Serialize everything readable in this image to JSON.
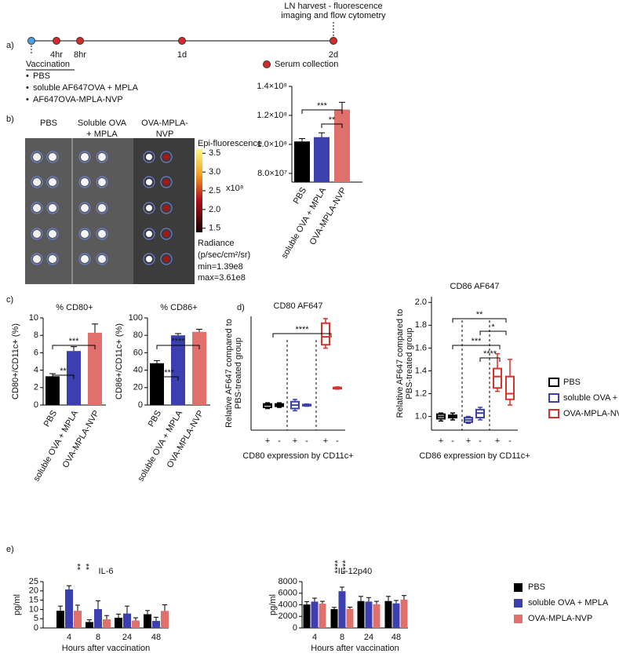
{
  "panel_labels": [
    "a)",
    "b)",
    "c)",
    "d)",
    "e)"
  ],
  "timeline": {
    "title_lines": [
      "LN harvest - fluorescence",
      "imaging and flow cytometry"
    ],
    "points": [
      "4hr",
      "8hr",
      "1d",
      "2d"
    ],
    "legend": "Serum collection",
    "group_title": "Vaccination",
    "groups": [
      "PBS",
      "soluble AF647OVA + MPLA",
      "AF647OVA-MPLA-NVP"
    ]
  },
  "image": {
    "columns": [
      [
        "PBS"
      ],
      [
        "Soluble OVA",
        "+ MPLA"
      ],
      [
        "OVA-MPLA-",
        "NVP"
      ]
    ],
    "colorbar": {
      "title": "Epi-fluorescence",
      "range": [
        1.39,
        3.61
      ],
      "ticks": [
        3.5,
        {
          "value": 3,
          "label": "3.0"
        },
        2.5,
        {
          "value": 2,
          "label": "2.0"
        },
        1.5
      ],
      "exponent": "x10⁸",
      "unit_lines": [
        "Radiance",
        "(p/sec/cm²/sr)"
      ],
      "min": "min=1.39e8",
      "max": "max=3.61e8"
    }
  },
  "chart_data": [
    {
      "type": "bar",
      "categories": [
        "PBS",
        "soluble OVA + MPLA",
        "OVA-MPLA-NVP"
      ],
      "values": [
        102000000,
        105000000,
        124000000
      ],
      "errors": [
        2000000,
        3000000,
        5000000
      ],
      "colors": [
        "#000000",
        "#3b3fb0",
        "#e0706c"
      ],
      "ylim": [
        74000000,
        140000000
      ],
      "yticks": [
        {
          "value": 80000000,
          "label": "8.0×10⁷"
        },
        {
          "value": 100000000,
          "label": "1.0×10⁸"
        },
        {
          "value": 120000000,
          "label": "1.2×10⁸"
        },
        {
          "value": 140000000,
          "label": "1.4×10⁸"
        }
      ],
      "annotations": [
        "***",
        "**"
      ]
    },
    {
      "type": "bar",
      "title": "% CD80+",
      "ylabel": "CD80+/CD11c+ (%)",
      "categories": [
        "PBS",
        "soluble OVA + MPLA",
        "OVA-MPLA-NVP"
      ],
      "values": [
        3.3,
        6.2,
        8.3
      ],
      "errors": [
        0.3,
        0.5,
        1.0
      ],
      "colors": [
        "#000000",
        "#3b3fb0",
        "#e0706c"
      ],
      "ylim": [
        0,
        10
      ],
      "yticks": [
        0,
        2,
        4,
        6,
        8,
        10
      ],
      "annotations": [
        "***",
        "**"
      ]
    },
    {
      "type": "bar",
      "title": "% CD86+",
      "ylabel": "CD86+/CD11c+ (%)",
      "categories": [
        "PBS",
        "soluble OVA + MPLA",
        "OVA-MPLA-NVP"
      ],
      "values": [
        48,
        80,
        84
      ],
      "errors": [
        3,
        2,
        3
      ],
      "colors": [
        "#000000",
        "#3b3fb0",
        "#e0706c"
      ],
      "ylim": [
        0,
        100
      ],
      "yticks": [
        0,
        20,
        40,
        60,
        80,
        100
      ],
      "annotations": [
        "****",
        "****"
      ]
    },
    {
      "type": "box",
      "title": "CD80 AF647",
      "ylabel_lines": [
        "Relative AF647 compared to",
        "PBS-treated group"
      ],
      "xlabel": "CD80 expression by CD11c+",
      "categories": [
        "+",
        "-",
        "+",
        "-",
        "+",
        "-"
      ],
      "ylim": [
        0.78,
        1.78
      ],
      "series": [
        {
          "color": "#000000",
          "boxes": [
            {
              "min": 0.97,
              "q1": 0.98,
              "median": 1.0,
              "q3": 1.01,
              "max": 1.02
            },
            {
              "min": 0.98,
              "q1": 0.99,
              "median": 1.0,
              "q3": 1.01,
              "max": 1.02
            }
          ]
        },
        {
          "color": "#3b3fb0",
          "boxes": [
            {
              "min": 0.95,
              "q1": 0.97,
              "median": 1.0,
              "q3": 1.03,
              "max": 1.05
            },
            {
              "min": 0.99,
              "q1": 0.995,
              "median": 1.0,
              "q3": 1.005,
              "max": 1.01
            }
          ]
        },
        {
          "color": "#d9312b",
          "boxes": [
            {
              "min": 1.5,
              "q1": 1.53,
              "median": 1.6,
              "q3": 1.72,
              "max": 1.76
            },
            {
              "min": 1.14,
              "q1": 1.145,
              "median": 1.15,
              "q3": 1.155,
              "max": 1.16
            }
          ]
        }
      ],
      "annotations": [
        "****"
      ]
    },
    {
      "type": "box",
      "title": "CD86 AF647",
      "ylabel_lines": [
        "Relative AF647 compared to",
        "PBS-treated group"
      ],
      "xlabel": "CD86 expression by CD11c+",
      "categories": [
        "+",
        "-",
        "+",
        "-",
        "+",
        "-"
      ],
      "ylim": [
        0.88,
        2.05
      ],
      "yticks": [
        {
          "value": 1,
          "label": "1.0"
        },
        1.2,
        1.4,
        1.6,
        1.8,
        {
          "value": 2,
          "label": "2.0"
        }
      ],
      "series": [
        {
          "name": "PBS",
          "color": "#000000",
          "boxes": [
            {
              "min": 0.96,
              "q1": 0.98,
              "median": 1.0,
              "q3": 1.02,
              "max": 1.03
            },
            {
              "min": 0.97,
              "q1": 0.99,
              "median": 1.0,
              "q3": 1.01,
              "max": 1.03
            }
          ]
        },
        {
          "name": "soluble OVA + MPLA",
          "color": "#3b3fb0",
          "boxes": [
            {
              "min": 0.94,
              "q1": 0.95,
              "median": 0.97,
              "q3": 0.99,
              "max": 1.0
            },
            {
              "min": 0.97,
              "q1": 0.99,
              "median": 1.03,
              "q3": 1.06,
              "max": 1.08
            }
          ]
        },
        {
          "name": "OVA-MPLA-NVP",
          "color": "#d9312b",
          "boxes": [
            {
              "min": 1.22,
              "q1": 1.25,
              "median": 1.35,
              "q3": 1.42,
              "max": 1.55
            },
            {
              "min": 1.1,
              "q1": 1.15,
              "median": 1.2,
              "q3": 1.35,
              "max": 1.5
            }
          ]
        }
      ],
      "annotations": [
        "**",
        "*",
        "***",
        "****"
      ]
    },
    {
      "type": "grouped_bar",
      "title": "IL-6",
      "ylabel": "pg/ml",
      "xlabel": "Hours after vaccination",
      "categories": [
        "4",
        "8",
        "24",
        "48"
      ],
      "ylim": [
        0,
        25
      ],
      "yticks": [
        0,
        5,
        10,
        15,
        20,
        25
      ],
      "series": [
        {
          "color": "#000000",
          "values": [
            9.3,
            3.2,
            5.5,
            7.4
          ],
          "errors": [
            2.5,
            1.2,
            2,
            2
          ]
        },
        {
          "color": "#3b3fb0",
          "values": [
            20.8,
            10.2,
            7.8,
            3.8
          ],
          "errors": [
            2,
            4.5,
            4,
            2
          ]
        },
        {
          "color": "#e0706c",
          "values": [
            9.3,
            4.7,
            4.0,
            9.2
          ],
          "errors": [
            3,
            2,
            1.5,
            3.3
          ]
        }
      ],
      "annotations": [
        "**",
        "**"
      ]
    },
    {
      "type": "grouped_bar",
      "title": "IL-12p40",
      "ylabel": "pg/ml",
      "xlabel": "Hours after vaccination",
      "categories": [
        "4",
        "8",
        "24",
        "48"
      ],
      "ylim": [
        0,
        8000
      ],
      "yticks": [
        0,
        2000,
        4000,
        6000,
        8000
      ],
      "series": [
        {
          "name": "PBS",
          "color": "#000000",
          "values": [
            4050,
            3250,
            4650,
            4650
          ],
          "errors": [
            500,
            300,
            800,
            800
          ]
        },
        {
          "name": "soluble OVA + MPLA",
          "color": "#3b3fb0",
          "values": [
            4550,
            6350,
            4550,
            4250
          ],
          "errors": [
            600,
            700,
            700,
            500
          ]
        },
        {
          "name": "OVA-MPLA-NVP",
          "color": "#e0706c",
          "values": [
            4200,
            3300,
            4100,
            4900
          ],
          "errors": [
            400,
            300,
            500,
            700
          ]
        }
      ],
      "annotations": [
        "****",
        "****"
      ]
    }
  ]
}
